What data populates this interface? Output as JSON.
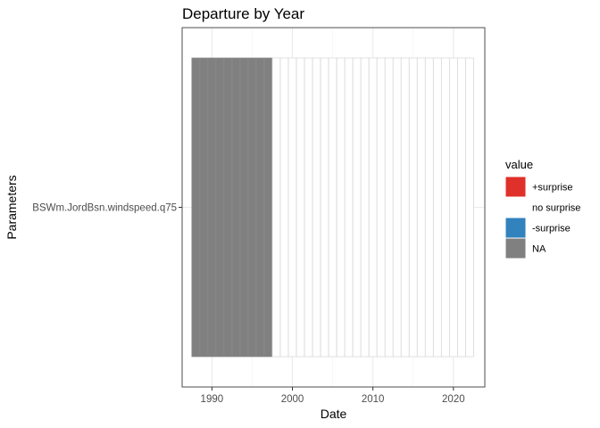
{
  "chart_data": {
    "type": "heatmap",
    "title": "Departure by Year",
    "xlabel": "Date",
    "ylabel": "Parameters",
    "x_ticks": [
      1990,
      2000,
      2010,
      2020
    ],
    "xlim": [
      1986.3,
      2023.9
    ],
    "y_categories": [
      "BSWm.JordBsn.windspeed.q75"
    ],
    "x": [
      1988,
      1989,
      1990,
      1991,
      1992,
      1993,
      1994,
      1995,
      1996,
      1997,
      1998,
      1999,
      2000,
      2001,
      2002,
      2003,
      2004,
      2005,
      2006,
      2007,
      2008,
      2009,
      2010,
      2011,
      2012,
      2013,
      2014,
      2015,
      2016,
      2017,
      2018,
      2019,
      2020,
      2021,
      2022
    ],
    "values": [
      "NA",
      "NA",
      "NA",
      "NA",
      "NA",
      "NA",
      "NA",
      "NA",
      "NA",
      "NA",
      "no surprise",
      "no surprise",
      "no surprise",
      "no surprise",
      "no surprise",
      "no surprise",
      "no surprise",
      "no surprise",
      "no surprise",
      "no surprise",
      "no surprise",
      "no surprise",
      "no surprise",
      "no surprise",
      "no surprise",
      "no surprise",
      "no surprise",
      "no surprise",
      "no surprise",
      "no surprise",
      "no surprise",
      "no surprise",
      "no surprise",
      "no surprise",
      "no surprise"
    ],
    "legend": {
      "title": "value",
      "position": "right",
      "entries": [
        {
          "label": "+surprise",
          "color": "#e0302a"
        },
        {
          "label": "no surprise",
          "color": "#ffffff"
        },
        {
          "label": "-surprise",
          "color": "#3182bd"
        },
        {
          "label": "NA",
          "color": "#808080"
        }
      ]
    },
    "grid": true
  }
}
